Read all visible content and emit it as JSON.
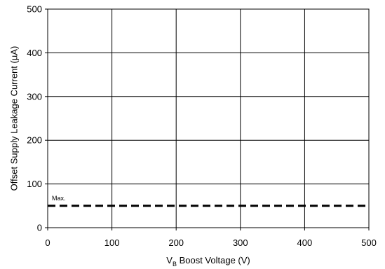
{
  "chart_data": {
    "type": "line",
    "title": "",
    "xlabel": {
      "main": "V",
      "subscript": "B",
      "rest": " Boost Voltage (V)"
    },
    "ylabel": "Offset Supply Leakage Current (µA)",
    "xlim": [
      0,
      500
    ],
    "ylim": [
      0,
      500
    ],
    "x_ticks": [
      0,
      100,
      200,
      300,
      400,
      500
    ],
    "y_ticks": [
      0,
      100,
      200,
      300,
      400,
      500
    ],
    "grid": true,
    "series": [
      {
        "name": "Max.",
        "style": "dashed",
        "color": "#000000",
        "x": [
          0,
          500
        ],
        "y": [
          50,
          50
        ]
      }
    ]
  }
}
